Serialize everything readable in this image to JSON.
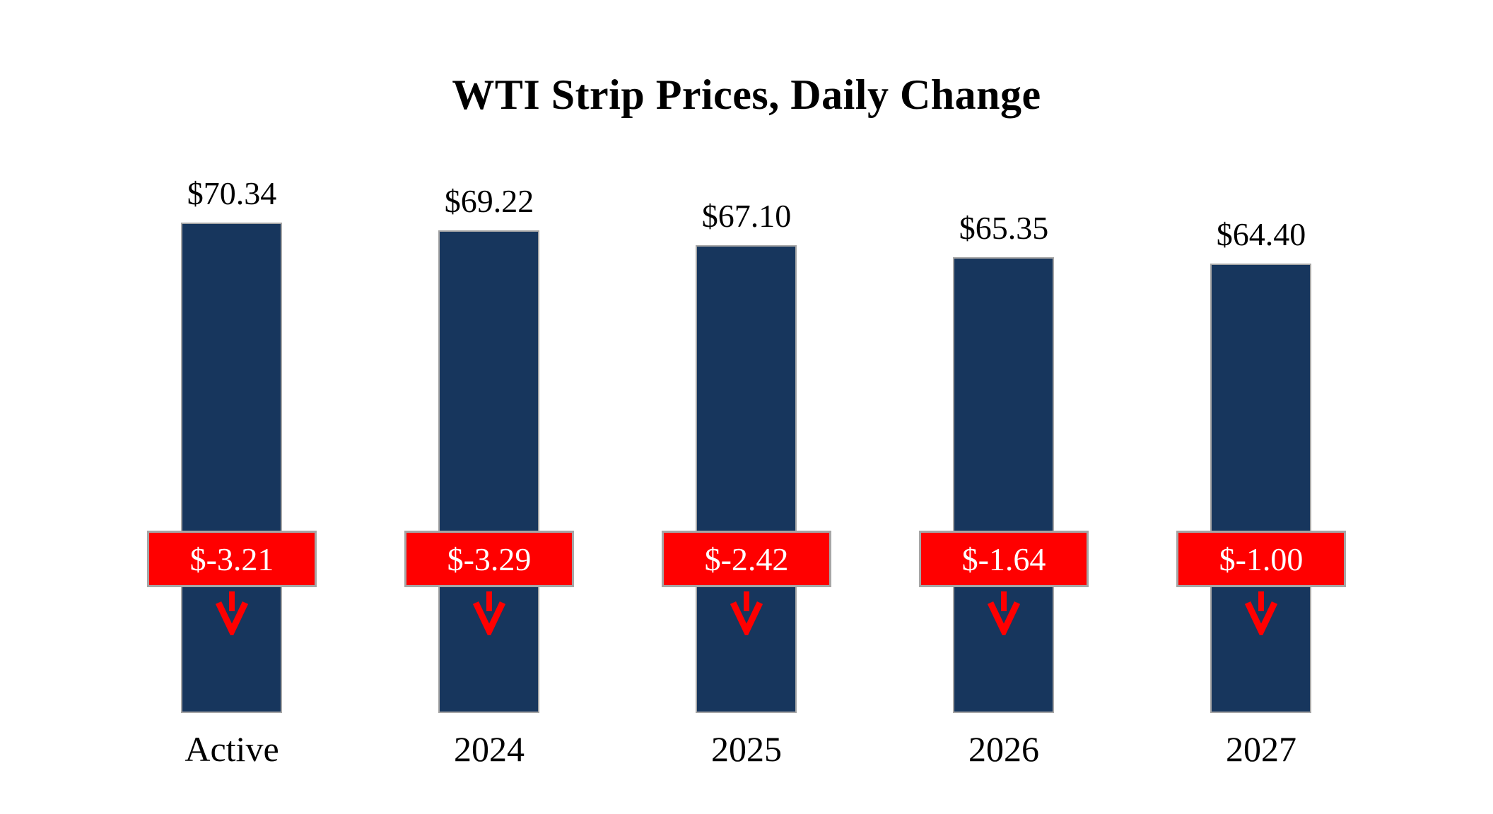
{
  "title": "WTI Strip Prices, Daily Change",
  "colors": {
    "bar": "#17365D",
    "change_box": "#FF0000",
    "change_text": "#FFFFFF",
    "arrow": "#FF0000",
    "border": "#A6A6A6",
    "label_text": "#000000"
  },
  "chart_data": {
    "type": "bar",
    "title": "WTI Strip Prices, Daily Change",
    "categories": [
      "Active",
      "2024",
      "2025",
      "2026",
      "2027"
    ],
    "series": [
      {
        "name": "WTI Strip Price",
        "values": [
          70.34,
          69.22,
          67.1,
          65.35,
          64.4
        ],
        "labels": [
          "$70.34",
          "$69.22",
          "$67.10",
          "$65.35",
          "$64.40"
        ]
      },
      {
        "name": "Daily Change",
        "values": [
          -3.21,
          -3.29,
          -2.42,
          -1.64,
          -1.0
        ],
        "labels": [
          "$-3.21",
          "$-3.29",
          "$-2.42",
          "$-1.64",
          "$-1.00"
        ]
      }
    ],
    "xlabel": "",
    "ylabel": "",
    "ylim": [
      0,
      75
    ],
    "grid": false,
    "legend": false,
    "bar_color": "#17365D",
    "change_marker_color": "#FF0000"
  }
}
